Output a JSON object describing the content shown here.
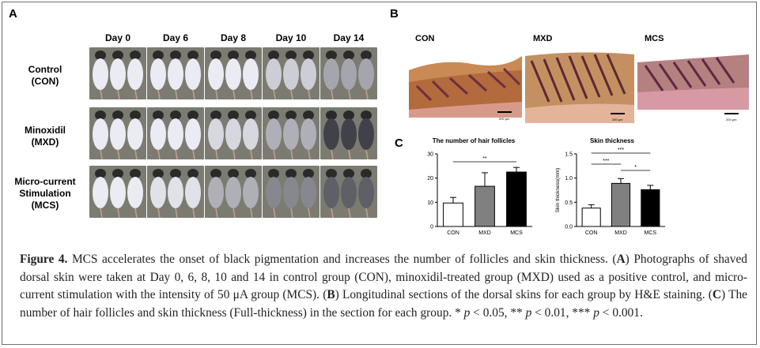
{
  "panels": {
    "a": "A",
    "b": "B",
    "c": "C"
  },
  "panel_a": {
    "days": [
      "Day 0",
      "Day 6",
      "Day 8",
      "Day 10",
      "Day 14"
    ],
    "groups": [
      {
        "line1": "Control",
        "line2": "(CON)",
        "line3": ""
      },
      {
        "line1": "Minoxidil",
        "line2": "(MXD)",
        "line3": ""
      },
      {
        "line1": "Micro-current",
        "line2": "Stimulation",
        "line3": "(MCS)"
      }
    ]
  },
  "panel_b": {
    "labels": [
      "CON",
      "MXD",
      "MCS"
    ],
    "scale_bar": "200 μm"
  },
  "chart_data": [
    {
      "type": "bar",
      "title": "The number of hair follicles",
      "categories": [
        "CON",
        "MXD",
        "MCS"
      ],
      "values": [
        9.7,
        16.6,
        22.5
      ],
      "errors": [
        2.3,
        5.6,
        1.9
      ],
      "colors": [
        "#ffffff",
        "#808080",
        "#000000"
      ],
      "ylim": [
        0,
        30
      ],
      "yticks": [
        "0",
        "10",
        "20",
        "30"
      ],
      "ylabel": "",
      "significance": [
        {
          "from": "CON",
          "to": "MCS",
          "label": "**"
        }
      ]
    },
    {
      "type": "bar",
      "title": "Skin thickness",
      "categories": [
        "CON",
        "MXD",
        "MCS"
      ],
      "values": [
        0.38,
        0.89,
        0.76
      ],
      "errors": [
        0.07,
        0.1,
        0.09
      ],
      "colors": [
        "#ffffff",
        "#808080",
        "#000000"
      ],
      "ylim": [
        0,
        1.5
      ],
      "yticks": [
        "0.0",
        "0.5",
        "1.0",
        "1.5"
      ],
      "ylabel": "Skin thickness(mm)",
      "significance": [
        {
          "from": "CON",
          "to": "MCS",
          "label": "***"
        },
        {
          "from": "CON",
          "to": "MXD",
          "label": "***"
        },
        {
          "from": "MXD",
          "to": "MCS",
          "label": "*"
        }
      ]
    }
  ],
  "caption": {
    "figure_label": "Figure 4.",
    "title": " MCS accelerates the onset of black pigmentation and increases the number of follicles and skin thickness. ",
    "a_label": "A",
    "a_text": " Photographs of shaved dorsal skin were taken at Day 0, 6, 8, 10 and 14 in control group (CON), minoxidil-treated group (MXD) used as a positive control, and micro-current stimulation with the intensity of 50 μA group (MCS). ",
    "b_label": "B",
    "b_text": " Longitudinal sections of the dorsal skins for each group by H&E staining. ",
    "c_label": "C",
    "c_text": " The number of hair follicles and skin thickness (Full-thickness) in the section for each group. * ",
    "p1": "p",
    "t1": " < 0.05, ** ",
    "p2": "p",
    "t2": " < 0.01, *** ",
    "p3": "p",
    "t3": " < 0.001."
  }
}
